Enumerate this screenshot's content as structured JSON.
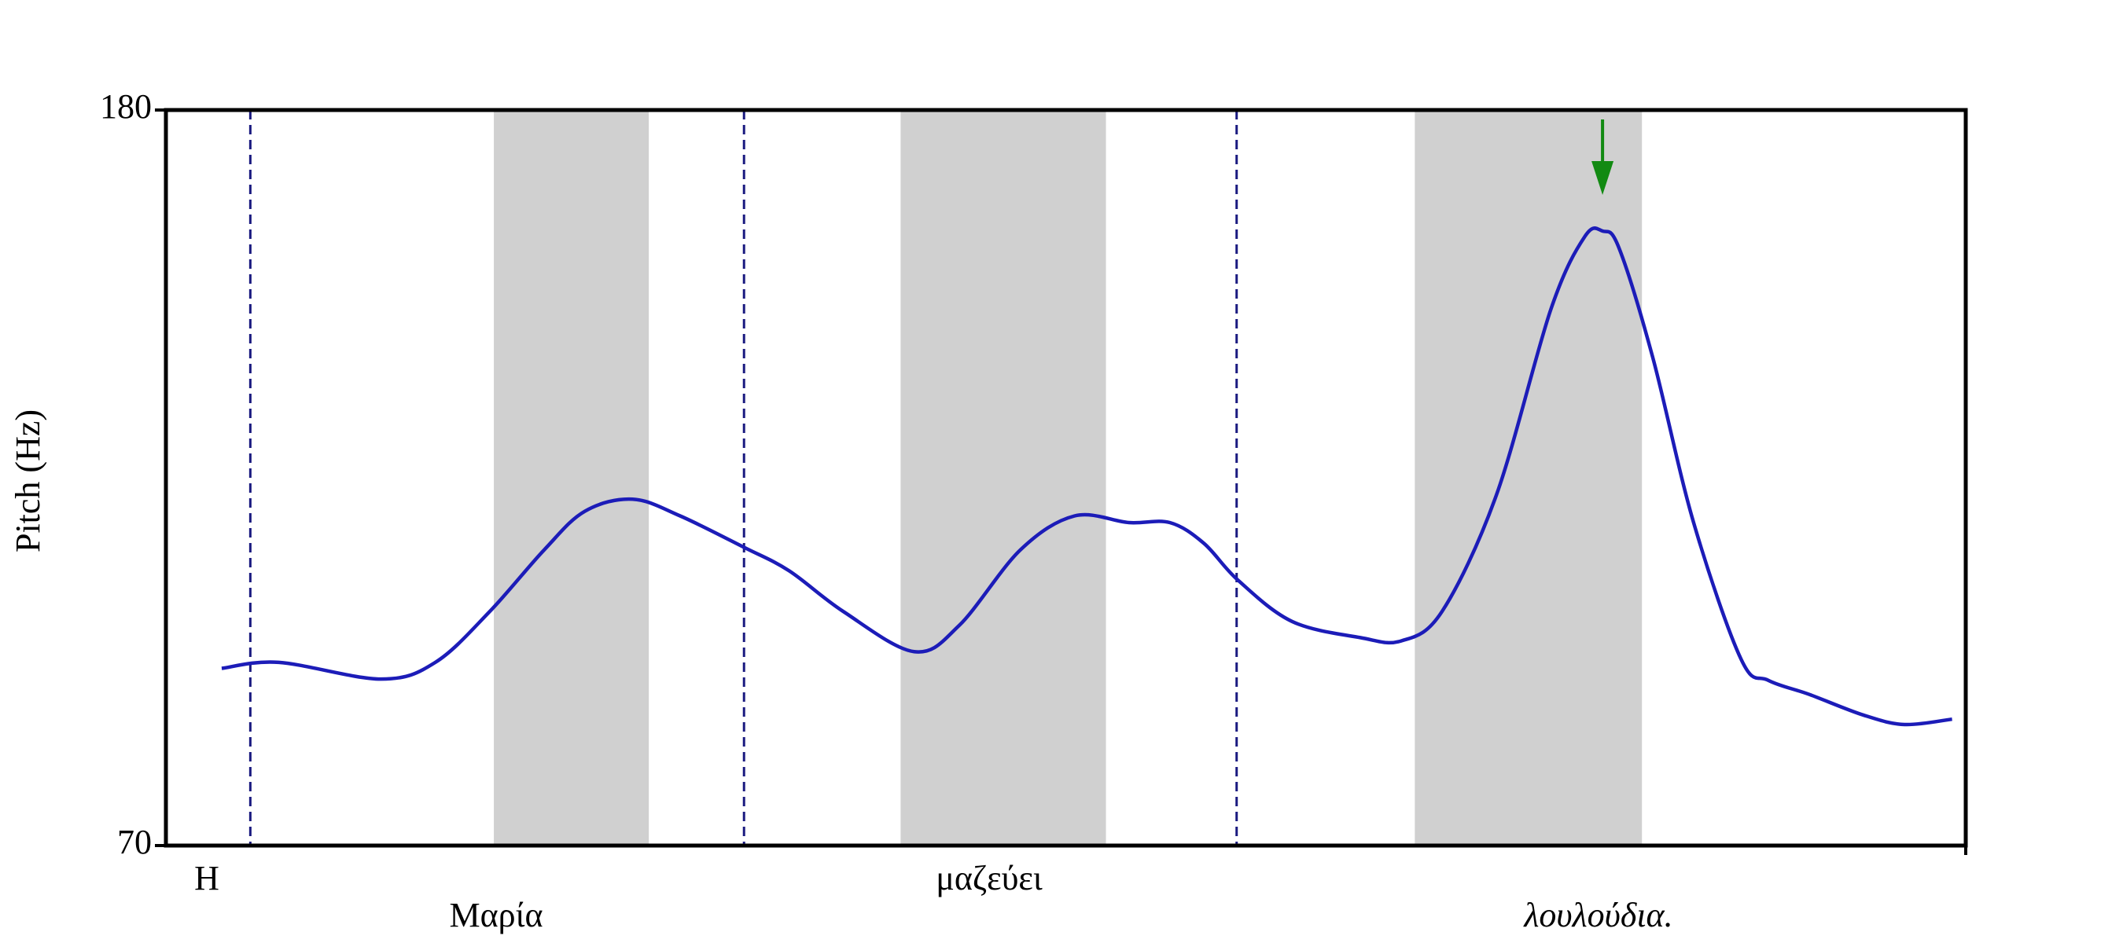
{
  "chart_data": {
    "type": "line",
    "y_label": "Pitch (Hz)",
    "ylim": [
      70,
      180
    ],
    "yticks": [
      70,
      180
    ],
    "xlim": [
      0,
      100
    ],
    "x": [
      3.1,
      6.27,
      11.94,
      14.97,
      17.99,
      21.01,
      23.28,
      25.93,
      28.57,
      32.12,
      34.62,
      37.64,
      41.57,
      44.07,
      47.47,
      50.49,
      53.51,
      55.78,
      57.67,
      59.56,
      62.58,
      66.36,
      68.63,
      70.9,
      73.92,
      76.95,
      78.84,
      79.82,
      80.73,
      82.61,
      84.88,
      87.53,
      89.04,
      91.31,
      94.33,
      96.6,
      99.24
    ],
    "series": [
      {
        "color": "#1c1cb8",
        "values": [
          96.5,
          97.4,
          94.9,
          97.4,
          105.0,
          114.2,
          120.0,
          121.8,
          119.3,
          114.6,
          111.1,
          105.0,
          99.0,
          102.9,
          114.2,
          119.3,
          118.3,
          118.3,
          115.2,
          109.7,
          103.5,
          101.1,
          100.6,
          105.0,
          122.4,
          150.2,
          161.1,
          161.9,
          159.4,
          143.0,
          118.3,
          97.8,
          94.7,
          92.6,
          89.5,
          88.1,
          88.9
        ]
      }
    ],
    "shaded_regions": [
      [
        18.22,
        26.83
      ],
      [
        40.82,
        52.23
      ],
      [
        69.39,
        82.01
      ]
    ],
    "shade_color": "#d0d0d0",
    "boundaries": [
      4.69,
      32.12,
      59.49
    ],
    "boundary_color": "#1a1a80",
    "arrow_color": "#128a12",
    "words": [
      "Η",
      "Μαρία",
      "μαζεύει",
      "λουλούδια."
    ]
  }
}
